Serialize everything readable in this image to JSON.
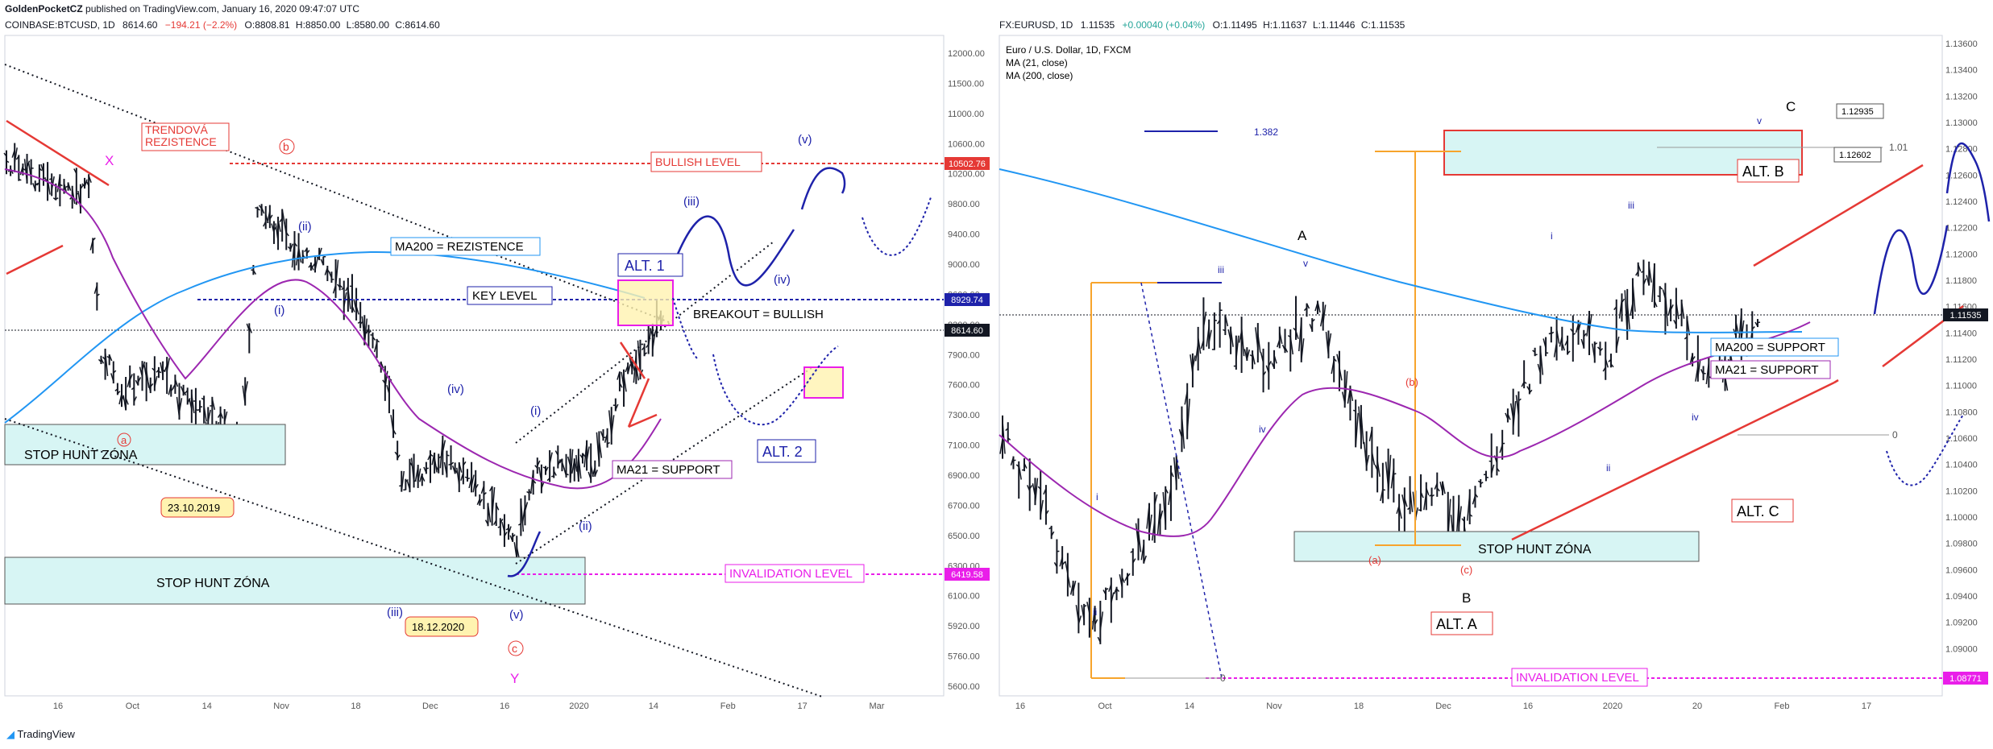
{
  "header": {
    "user": "GoldenPocketCZ",
    "published": "published on TradingView.com, January 16, 2020 09:47:07 UTC"
  },
  "footer": {
    "brand": "TradingView"
  },
  "colors": {
    "red": "#e53935",
    "blue": "#1e22aa",
    "magenta": "#e91ee9",
    "purple": "#9c27b0",
    "ma200": "#2196f3",
    "cyan_box": "#d7f5f4",
    "orange": "#f7a42c",
    "black": "#131722"
  },
  "charts": [
    {
      "id": "btc",
      "symbol_line": {
        "symbol": "COINBASE:BTCUSD, 1D",
        "price": "8614.60",
        "change": "−194.21 (−2.2%)",
        "o": "O:8808.81",
        "h": "H:8850.00",
        "l": "L:8580.00",
        "c": "C:8614.60"
      },
      "x_labels": [
        "16",
        "Oct",
        "14",
        "Nov",
        "18",
        "Dec",
        "16",
        "2020",
        "14",
        "Feb",
        "17",
        "Mar"
      ],
      "y_labels": [
        "12000.00",
        "11500.00",
        "11000.00",
        "10600.00",
        "10200.00",
        "9800.00",
        "9400.00",
        "9000.00",
        "8600.00",
        "8200.00",
        "7900.00",
        "7600.00",
        "7300.00",
        "7100.00",
        "6900.00",
        "6700.00",
        "6500.00",
        "6300.00",
        "6100.00",
        "5920.00",
        "5760.00",
        "5600.00"
      ],
      "price_badges": [
        {
          "text": "10502.76",
          "color": "#e53935"
        },
        {
          "text": "8929.74",
          "color": "#1e22aa"
        },
        {
          "text": "8614.60",
          "color": "#131722"
        },
        {
          "text": "6419.58",
          "color": "#e91ee9"
        }
      ],
      "annotations": {
        "trend": "TRENDOVÁ REZISTENCE",
        "bullish": "BULLISH LEVEL",
        "ma200": "MA200 = REZISTENCE",
        "key": "KEY LEVEL",
        "alt1": "ALT. 1",
        "alt2": "ALT. 2",
        "breakout": "BREAKOUT = BULLISH",
        "ma21": "MA21 = SUPPORT",
        "invalid": "INVALIDATION LEVEL",
        "stophunt1": "STOP HUNT ZÓNA",
        "stophunt2": "STOP HUNT ZÓNA",
        "date1": "23.10.2019",
        "date2": "18.12.2020"
      },
      "waves": [
        "X",
        "a",
        "b",
        "(i)",
        "(ii)",
        "(iii)",
        "(iv)",
        "(v)",
        "c",
        "Y",
        "(i)",
        "(ii)",
        "(iii)",
        "(iv)",
        "(v)"
      ]
    },
    {
      "id": "eur",
      "symbol_line": {
        "symbol": "FX:EURUSD, 1D",
        "price": "1.11535",
        "change": "+0.00040 (+0.04%)",
        "o": "O:1.11495",
        "h": "H:1.11637",
        "l": "L:1.11446",
        "c": "C:1.11535"
      },
      "legend": [
        "Euro / U.S. Dollar, 1D, FXCM",
        "MA (21, close)",
        "MA (200, close)"
      ],
      "x_labels": [
        "16",
        "Oct",
        "14",
        "Nov",
        "18",
        "Dec",
        "16",
        "2020",
        "20",
        "Feb",
        "17"
      ],
      "y_labels": [
        "1.13600",
        "1.13400",
        "1.13200",
        "1.13000",
        "1.12800",
        "1.12600",
        "1.12400",
        "1.12200",
        "1.12000",
        "1.11800",
        "1.11600",
        "1.11400",
        "1.11200",
        "1.11000",
        "1.10800",
        "1.10600",
        "1.10400",
        "1.10200",
        "1.10000",
        "1.09800",
        "1.09600",
        "1.09400",
        "1.09200",
        "1.09000",
        "1.08800"
      ],
      "price_badges": [
        {
          "text": "1.11535",
          "color": "#131722"
        },
        {
          "text": "1.08771",
          "color": "#e91ee9"
        }
      ],
      "annotations": {
        "altB": "ALT. B",
        "altA": "ALT. A",
        "altC": "ALT. C",
        "ma200": "MA200 = SUPPORT",
        "ma21": "MA21 = SUPPORT",
        "stophunt": "STOP HUNT ZÓNA",
        "invalid": "INVALIDATION LEVEL",
        "fib1": "1.382",
        "fib2": "1.01",
        "fib3": "0",
        "fib4": "0",
        "price1": "1.12935",
        "price2": "1.12602"
      },
      "waves": [
        "A",
        "B",
        "C",
        "(a)",
        "(b)",
        "(c)",
        "i",
        "ii",
        "iii",
        "iv",
        "v",
        "i",
        "ii",
        "iii",
        "iv",
        "v"
      ]
    }
  ],
  "chart_data": [
    {
      "type": "candlestick",
      "title": "COINBASE:BTCUSD, 1D",
      "ylim": [
        5600,
        12000
      ],
      "series": [
        {
          "name": "MA200"
        },
        {
          "name": "MA21"
        }
      ],
      "levels": [
        {
          "name": "BULLISH LEVEL",
          "value": 10502.76
        },
        {
          "name": "KEY LEVEL",
          "value": 8929.74
        },
        {
          "name": "close",
          "value": 8614.6
        },
        {
          "name": "INVALIDATION LEVEL",
          "value": 6419.58
        }
      ]
    },
    {
      "type": "candlestick",
      "title": "FX:EURUSD, 1D",
      "ylim": [
        1.088,
        1.136
      ],
      "series": [
        {
          "name": "MA (21, close)"
        },
        {
          "name": "MA (200, close)"
        }
      ],
      "levels": [
        {
          "name": "close",
          "value": 1.11535
        },
        {
          "name": "INVALIDATION LEVEL",
          "value": 1.08771
        },
        {
          "name": "target",
          "value": 1.12935
        },
        {
          "name": "target",
          "value": 1.12602
        }
      ]
    }
  ]
}
